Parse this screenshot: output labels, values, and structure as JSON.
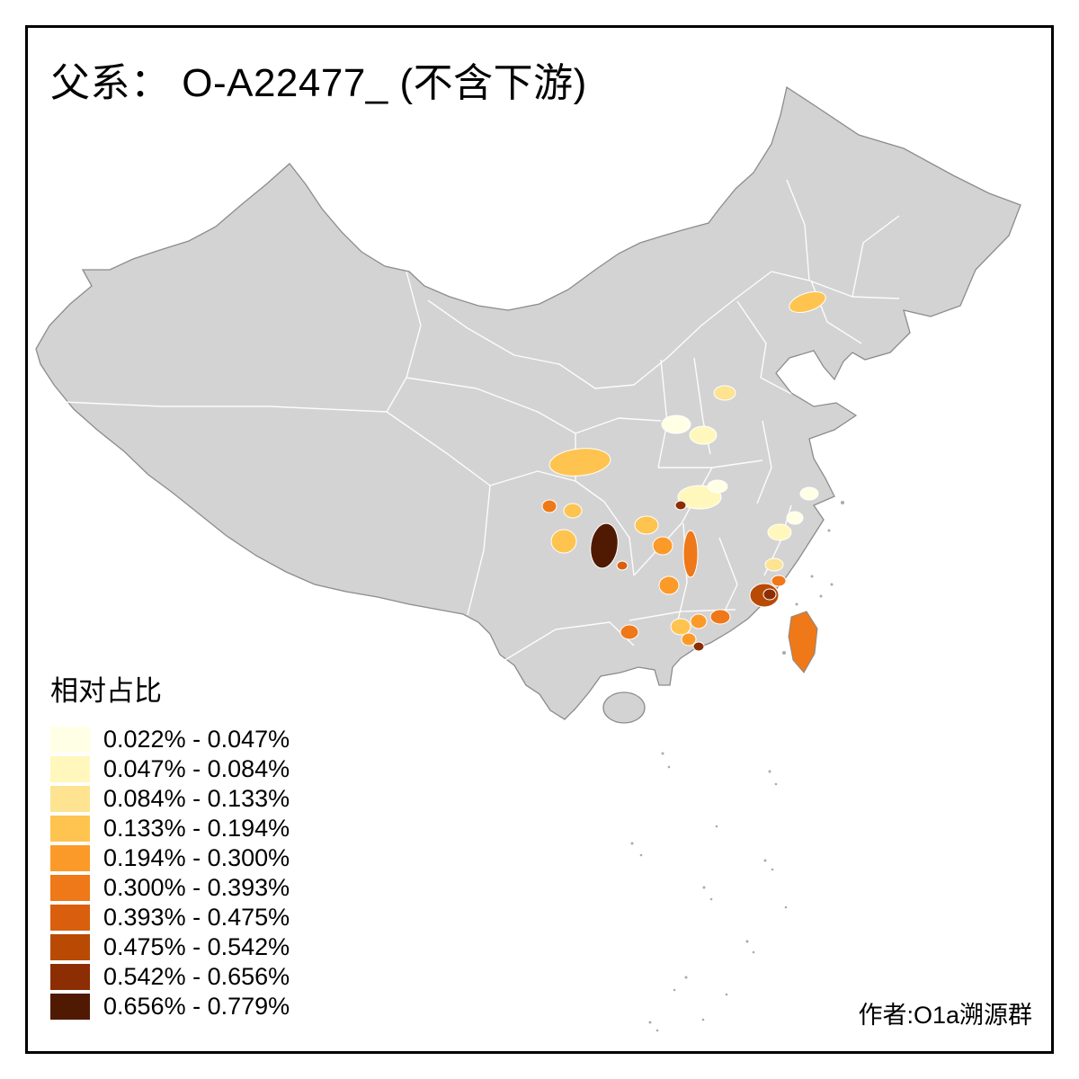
{
  "title": "父系： O-A22477_ (不含下游)",
  "attribution": "作者:O1a溯源群",
  "legend": {
    "title": "相对占比",
    "entries": [
      {
        "label": "0.022% - 0.047%",
        "color": "#FFFFE5"
      },
      {
        "label": "0.047% - 0.084%",
        "color": "#FFF7BC"
      },
      {
        "label": "0.084% - 0.133%",
        "color": "#FEE391"
      },
      {
        "label": "0.133% - 0.194%",
        "color": "#FEC44F"
      },
      {
        "label": "0.194% - 0.300%",
        "color": "#FB9A29"
      },
      {
        "label": "0.300% - 0.393%",
        "color": "#EF7818"
      },
      {
        "label": "0.393% - 0.475%",
        "color": "#D95F0E"
      },
      {
        "label": "0.475% - 0.542%",
        "color": "#B84A04"
      },
      {
        "label": "0.542% - 0.656%",
        "color": "#8C2D04"
      },
      {
        "label": "0.656% - 0.779%",
        "color": "#501A02"
      }
    ]
  },
  "map": {
    "land_color": "#D3D3D3",
    "boundary_color": "#FFFFFF",
    "outline_color": "#8C8C8C",
    "island_color": "#ABABAB",
    "regions": {
      "liaoning_west": "#FEC44F",
      "shanxi_south": "#FEE391",
      "shaanxi_guanzhong": "#FFF7BC",
      "henan_west": "#FFFFE5",
      "sichuan_north": "#FEC44F",
      "chengdu_west": "#EF7818",
      "sichuan_central": "#FEC44F",
      "sichuan_south": "#FEC44F",
      "chongqing": "#501A02",
      "chongqing_east": "#D95F0E",
      "hubei_central": "#FFF7BC",
      "hubei_north": "#FFFFE5",
      "hubei_west_spot": "#8C2D04",
      "hunan_northwest": "#FEC44F",
      "hunan_central": "#FB9A29",
      "hunan_south": "#FB9A29",
      "jiangxi_central": "#EF7818",
      "zhejiang_west": "#FFF7BC",
      "zhejiang_north": "#FFFFE5",
      "jiangsu_south": "#FFFFE5",
      "fujian_north": "#FEE391",
      "fujian_central": "#EF7818",
      "fujian_coast": "#B84A04",
      "fujian_coast_core": "#8C2D04",
      "guangxi_east": "#EF7818",
      "guangdong_west": "#FEC44F",
      "guangdong_central": "#FB9A29",
      "guangdong_east": "#EF7818",
      "guangdong_south": "#FB9A29",
      "guangdong_pearl_spot": "#8C2D04",
      "taiwan": "#EF7818"
    }
  }
}
